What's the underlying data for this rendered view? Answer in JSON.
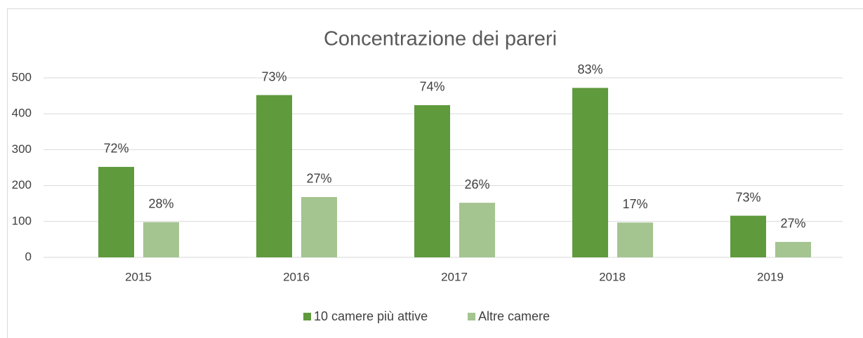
{
  "chart_data": {
    "type": "bar",
    "title": "Concentrazione dei pareri",
    "categories": [
      "2015",
      "2016",
      "2017",
      "2018",
      "2019"
    ],
    "series": [
      {
        "name": "10 camere più attive",
        "color": "#5f9a3d",
        "values": [
          252,
          452,
          424,
          472,
          116
        ],
        "data_labels": [
          "72%",
          "73%",
          "74%",
          "83%",
          "73%"
        ]
      },
      {
        "name": "Altre camere",
        "color": "#a4c490",
        "values": [
          98,
          168,
          152,
          97,
          43
        ],
        "data_labels": [
          "28%",
          "27%",
          "26%",
          "17%",
          "27%"
        ]
      }
    ],
    "ylim": [
      0,
      500
    ],
    "yticks": [
      0,
      100,
      200,
      300,
      400,
      500
    ],
    "grid": true,
    "legend": "bottom"
  }
}
